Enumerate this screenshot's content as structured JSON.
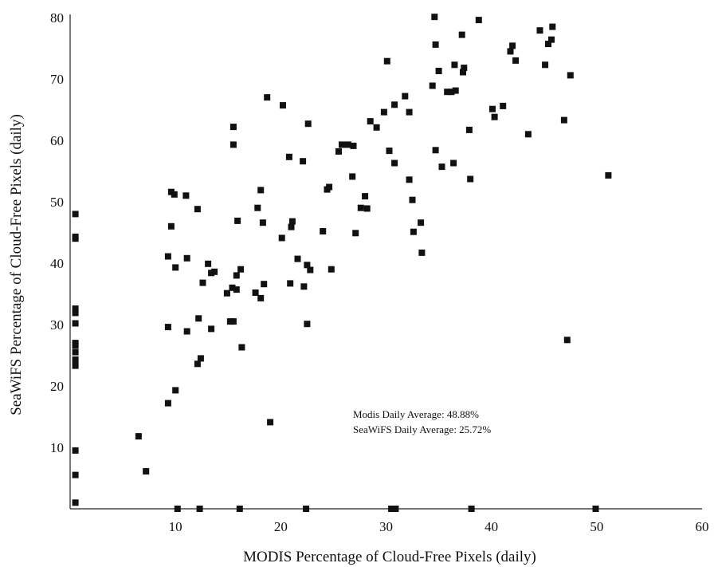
{
  "chart_data": {
    "type": "scatter",
    "title": "",
    "xlabel": "MODIS Percentage of Cloud-Free Pixels (daily)",
    "ylabel": "SeaWiFS Percentage of Cloud-Free Pixels (daily)",
    "xlim": [
      0,
      60
    ],
    "ylim": [
      0,
      80
    ],
    "x_ticks": [
      "10",
      "20",
      "30",
      "40",
      "50",
      "60"
    ],
    "y_ticks": [
      "10",
      "20",
      "30",
      "40",
      "50",
      "60",
      "70",
      "80"
    ],
    "grid": false,
    "marker_color": "#111111",
    "annotations": [
      "Modis Daily Average: 48.88%",
      "SeaWiFS Daily Average: 25.72%"
    ],
    "series": [
      {
        "points": [
          [
            0.5,
            1.0
          ],
          [
            0.5,
            5.5
          ],
          [
            0.5,
            9.5
          ],
          [
            0.5,
            23.3
          ],
          [
            0.5,
            24.3
          ],
          [
            0.5,
            25.5
          ],
          [
            0.5,
            26.6
          ],
          [
            0.5,
            27.0
          ],
          [
            0.5,
            30.2
          ],
          [
            0.5,
            31.9
          ],
          [
            0.5,
            32.6
          ],
          [
            0.5,
            44.0
          ],
          [
            0.5,
            44.3
          ],
          [
            0.5,
            48.0
          ],
          [
            6.5,
            11.8
          ],
          [
            7.2,
            6.1
          ],
          [
            9.3,
            17.2
          ],
          [
            9.3,
            29.6
          ],
          [
            9.3,
            41.1
          ],
          [
            9.6,
            46.0
          ],
          [
            9.6,
            51.6
          ],
          [
            9.9,
            51.2
          ],
          [
            10.0,
            19.3
          ],
          [
            10.0,
            39.3
          ],
          [
            10.2,
            0.0
          ],
          [
            11.0,
            51.0
          ],
          [
            11.1,
            40.8
          ],
          [
            11.1,
            28.9
          ],
          [
            12.1,
            48.8
          ],
          [
            12.1,
            23.6
          ],
          [
            12.2,
            31.0
          ],
          [
            12.3,
            0.0
          ],
          [
            12.4,
            24.5
          ],
          [
            12.6,
            36.8
          ],
          [
            13.1,
            39.9
          ],
          [
            13.4,
            38.4
          ],
          [
            13.4,
            29.3
          ],
          [
            13.7,
            38.6
          ],
          [
            14.9,
            35.1
          ],
          [
            15.2,
            30.5
          ],
          [
            15.4,
            36.0
          ],
          [
            15.5,
            30.5
          ],
          [
            15.5,
            62.2
          ],
          [
            15.5,
            59.3
          ],
          [
            15.8,
            35.7
          ],
          [
            15.8,
            38.0
          ],
          [
            15.9,
            46.9
          ],
          [
            16.1,
            0.0
          ],
          [
            16.2,
            39.0
          ],
          [
            16.3,
            26.3
          ],
          [
            17.6,
            35.2
          ],
          [
            17.8,
            49.0
          ],
          [
            18.1,
            34.3
          ],
          [
            18.1,
            51.9
          ],
          [
            18.3,
            46.6
          ],
          [
            18.4,
            36.6
          ],
          [
            18.7,
            67.0
          ],
          [
            19.0,
            14.1
          ],
          [
            20.1,
            44.1
          ],
          [
            20.2,
            65.7
          ],
          [
            20.8,
            57.3
          ],
          [
            20.9,
            36.7
          ],
          [
            21.0,
            45.9
          ],
          [
            21.1,
            46.8
          ],
          [
            21.6,
            40.7
          ],
          [
            22.1,
            56.6
          ],
          [
            22.2,
            36.2
          ],
          [
            22.4,
            0.0
          ],
          [
            22.5,
            30.1
          ],
          [
            22.5,
            39.7
          ],
          [
            22.6,
            62.7
          ],
          [
            22.8,
            38.9
          ],
          [
            24.0,
            45.2
          ],
          [
            24.4,
            52.0
          ],
          [
            24.6,
            52.4
          ],
          [
            24.8,
            39.0
          ],
          [
            25.5,
            58.2
          ],
          [
            25.8,
            59.3
          ],
          [
            26.4,
            59.3
          ],
          [
            26.8,
            54.1
          ],
          [
            26.9,
            59.1
          ],
          [
            27.1,
            44.9
          ],
          [
            27.6,
            49.0
          ],
          [
            28.0,
            50.9
          ],
          [
            28.2,
            48.9
          ],
          [
            28.5,
            63.1
          ],
          [
            29.1,
            62.1
          ],
          [
            29.8,
            64.6
          ],
          [
            30.1,
            72.9
          ],
          [
            30.3,
            58.3
          ],
          [
            30.5,
            0.0
          ],
          [
            30.8,
            56.3
          ],
          [
            30.8,
            65.8
          ],
          [
            30.9,
            0.0
          ],
          [
            31.8,
            67.2
          ],
          [
            32.2,
            64.6
          ],
          [
            32.2,
            53.6
          ],
          [
            32.5,
            50.3
          ],
          [
            32.6,
            45.1
          ],
          [
            33.3,
            46.6
          ],
          [
            33.4,
            41.7
          ],
          [
            34.4,
            68.9
          ],
          [
            34.6,
            80.1
          ],
          [
            34.7,
            75.6
          ],
          [
            34.7,
            58.4
          ],
          [
            35.0,
            71.3
          ],
          [
            35.3,
            55.7
          ],
          [
            35.8,
            67.9
          ],
          [
            36.2,
            67.9
          ],
          [
            36.4,
            56.3
          ],
          [
            36.5,
            72.3
          ],
          [
            36.6,
            68.1
          ],
          [
            37.2,
            77.2
          ],
          [
            37.3,
            71.1
          ],
          [
            37.4,
            71.8
          ],
          [
            37.9,
            61.7
          ],
          [
            38.0,
            53.7
          ],
          [
            38.1,
            0.0
          ],
          [
            38.8,
            79.6
          ],
          [
            40.1,
            65.1
          ],
          [
            40.3,
            63.8
          ],
          [
            41.1,
            65.6
          ],
          [
            41.8,
            74.5
          ],
          [
            42.0,
            75.4
          ],
          [
            42.3,
            73.0
          ],
          [
            43.5,
            61.0
          ],
          [
            44.6,
            77.9
          ],
          [
            45.1,
            72.3
          ],
          [
            45.4,
            75.7
          ],
          [
            45.7,
            76.4
          ],
          [
            45.8,
            78.5
          ],
          [
            46.9,
            63.3
          ],
          [
            47.2,
            27.5
          ],
          [
            47.5,
            70.6
          ],
          [
            49.9,
            0.0
          ],
          [
            51.1,
            54.3
          ]
        ]
      }
    ]
  }
}
